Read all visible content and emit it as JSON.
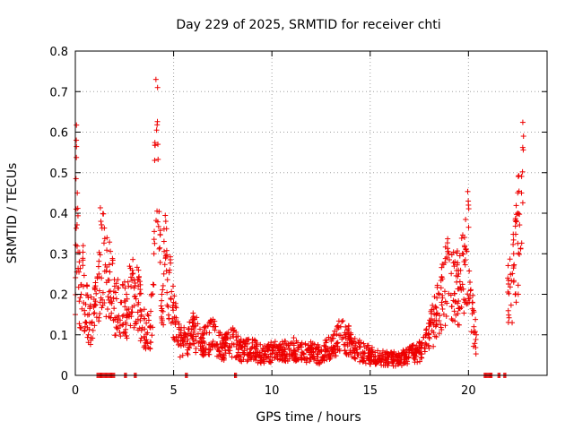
{
  "chart_data": {
    "type": "scatter",
    "title": "Day 229 of 2025, SRMTID for receiver chti",
    "xlabel": "GPS time / hours",
    "ylabel": "SRMTID / TECUs",
    "xlim": [
      0,
      24
    ],
    "ylim": [
      0,
      0.8
    ],
    "xticks": [
      0,
      5,
      10,
      15,
      20
    ],
    "yticks": [
      0,
      0.1,
      0.2,
      0.3,
      0.4,
      0.5,
      0.6,
      0.7,
      0.8
    ],
    "grid": true,
    "marker": "plus",
    "color": "#ee0000",
    "series": [
      {
        "name": "SRMTID",
        "envelope_points": [
          [
            0.0,
            0.15
          ],
          [
            0.05,
            0.58
          ],
          [
            0.1,
            0.45
          ],
          [
            0.2,
            0.28
          ],
          [
            0.3,
            0.2
          ],
          [
            0.4,
            0.32
          ],
          [
            0.5,
            0.12
          ],
          [
            0.6,
            0.22
          ],
          [
            0.7,
            0.15
          ],
          [
            1.2,
            0.25
          ],
          [
            1.3,
            0.38
          ],
          [
            2.0,
            0.22
          ],
          [
            2.3,
            0.18
          ],
          [
            2.6,
            0.2
          ],
          [
            2.9,
            0.25
          ],
          [
            3.2,
            0.22
          ],
          [
            3.5,
            0.14
          ],
          [
            3.8,
            0.12
          ],
          [
            4.0,
            0.3
          ],
          [
            4.1,
            0.73
          ],
          [
            4.2,
            0.57
          ],
          [
            4.4,
            0.2
          ],
          [
            4.6,
            0.38
          ],
          [
            4.8,
            0.26
          ],
          [
            5.0,
            0.18
          ],
          [
            5.3,
            0.1
          ],
          [
            5.6,
            0.1
          ],
          [
            6.0,
            0.13
          ],
          [
            6.5,
            0.1
          ],
          [
            7.0,
            0.12
          ],
          [
            7.5,
            0.08
          ],
          [
            8.0,
            0.1
          ],
          [
            8.5,
            0.07
          ],
          [
            9.0,
            0.08
          ],
          [
            9.5,
            0.06
          ],
          [
            10.0,
            0.07
          ],
          [
            10.5,
            0.07
          ],
          [
            11.0,
            0.08
          ],
          [
            11.5,
            0.07
          ],
          [
            12.0,
            0.07
          ],
          [
            12.5,
            0.06
          ],
          [
            13.0,
            0.09
          ],
          [
            13.5,
            0.12
          ],
          [
            14.0,
            0.1
          ],
          [
            14.5,
            0.07
          ],
          [
            15.0,
            0.06
          ],
          [
            15.5,
            0.05
          ],
          [
            16.0,
            0.05
          ],
          [
            16.5,
            0.05
          ],
          [
            17.0,
            0.06
          ],
          [
            17.5,
            0.07
          ],
          [
            18.0,
            0.12
          ],
          [
            18.5,
            0.2
          ],
          [
            19.0,
            0.3
          ],
          [
            19.5,
            0.25
          ],
          [
            19.8,
            0.32
          ],
          [
            20.0,
            0.42
          ],
          [
            20.2,
            0.18
          ],
          [
            20.4,
            0.1
          ],
          [
            22.0,
            0.24
          ],
          [
            22.3,
            0.3
          ],
          [
            22.5,
            0.4
          ],
          [
            22.7,
            0.45
          ],
          [
            22.8,
            0.59
          ]
        ],
        "zero_segments": [
          [
            1.1,
            2.0
          ],
          [
            2.5,
            2.6
          ],
          [
            3.0,
            3.1
          ],
          [
            5.6,
            5.7
          ],
          [
            8.1,
            8.2
          ],
          [
            20.8,
            21.2
          ],
          [
            21.5,
            21.6
          ],
          [
            21.8,
            21.9
          ]
        ]
      }
    ]
  }
}
